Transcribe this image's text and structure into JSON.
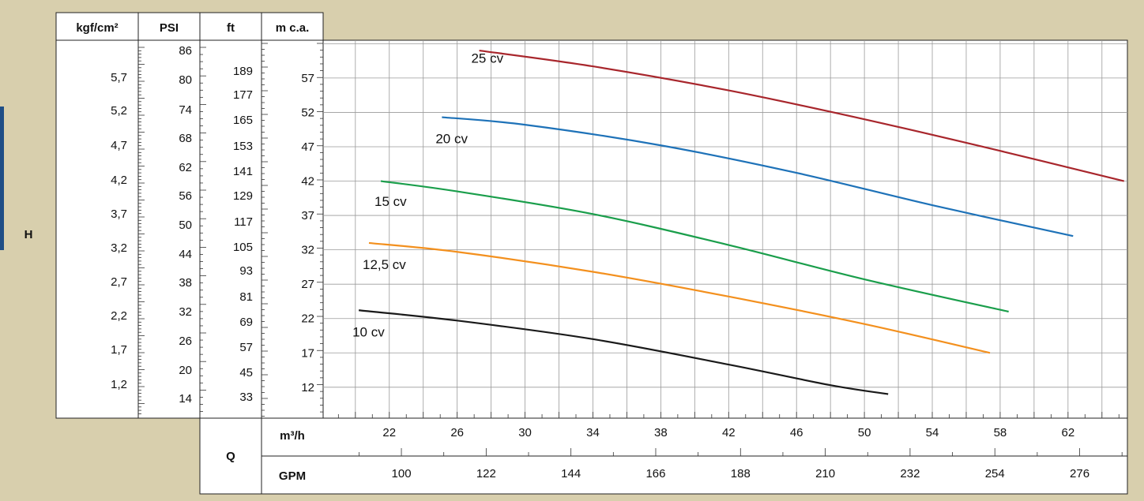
{
  "axis_label_h": "H",
  "axis_label_q": "Q",
  "headers": {
    "kgf": "kgf/cm²",
    "psi": "PSI",
    "ft": "ft",
    "mca": "m c.a.",
    "m3h": "m³/h",
    "gpm": "GPM"
  },
  "scales": {
    "kgf": [
      "5,7",
      "5,2",
      "4,7",
      "4,2",
      "3,7",
      "3,2",
      "2,7",
      "2,2",
      "1,7",
      "1,2"
    ],
    "psi": [
      "86",
      "80",
      "74",
      "68",
      "62",
      "56",
      "50",
      "44",
      "38",
      "32",
      "26",
      "20",
      "14"
    ],
    "ft": [
      "189",
      "177",
      "165",
      "153",
      "141",
      "129",
      "117",
      "105",
      "93",
      "81",
      "69",
      "57",
      "45",
      "33"
    ],
    "mca": [
      "57",
      "52",
      "47",
      "42",
      "37",
      "32",
      "27",
      "22",
      "17",
      "12"
    ],
    "m3h": [
      "22",
      "26",
      "30",
      "34",
      "38",
      "42",
      "46",
      "50",
      "54",
      "58",
      "62"
    ],
    "gpm": [
      "100",
      "122",
      "144",
      "166",
      "188",
      "210",
      "232",
      "254",
      "276"
    ]
  },
  "colors": {
    "background": "#d8cfad",
    "sidebar_accent": "#1f4e86",
    "grid": "#9a9a9a"
  },
  "chart_data": {
    "type": "line",
    "title": "",
    "xlabel": "Q",
    "ylabel": "H",
    "x_unit": "m³/h",
    "y_unit": "m c.a.",
    "xlim": [
      18.1,
      65.5
    ],
    "ylim": [
      7.5,
      62.5
    ],
    "grid": true,
    "series": [
      {
        "name": "25 cv",
        "color": "#a8262c",
        "label_at": [
          27.2,
          59.2
        ],
        "points": [
          [
            27.3,
            61
          ],
          [
            34,
            58.7
          ],
          [
            42,
            55.2
          ],
          [
            50,
            51
          ],
          [
            58,
            46.4
          ],
          [
            65.3,
            42
          ]
        ]
      },
      {
        "name": "20 cv",
        "color": "#1e72b8",
        "label_at": [
          25.1,
          47.5
        ],
        "points": [
          [
            25.1,
            51.3
          ],
          [
            30,
            50.2
          ],
          [
            38,
            47.2
          ],
          [
            46,
            43.2
          ],
          [
            54,
            38.5
          ],
          [
            62.3,
            34
          ]
        ]
      },
      {
        "name": "15 cv",
        "color": "#1a9e4b",
        "label_at": [
          21.5,
          38.4
        ],
        "points": [
          [
            21.5,
            42
          ],
          [
            26,
            40.5
          ],
          [
            34,
            37.2
          ],
          [
            42,
            32.7
          ],
          [
            50,
            27.7
          ],
          [
            58.5,
            23
          ]
        ]
      },
      {
        "name": "12,5 cv",
        "color": "#f3901e",
        "label_at": [
          20.8,
          29.2
        ],
        "points": [
          [
            20.8,
            33
          ],
          [
            26,
            31.7
          ],
          [
            34,
            28.8
          ],
          [
            42,
            25.2
          ],
          [
            50,
            21.2
          ],
          [
            57.4,
            17
          ]
        ]
      },
      {
        "name": "10 cv",
        "color": "#1a1a1a",
        "label_at": [
          20.2,
          19.4
        ],
        "points": [
          [
            20.2,
            23.2
          ],
          [
            26,
            21.7
          ],
          [
            34,
            19
          ],
          [
            42,
            15.3
          ],
          [
            48,
            12.3
          ],
          [
            51.4,
            11
          ]
        ]
      }
    ]
  }
}
